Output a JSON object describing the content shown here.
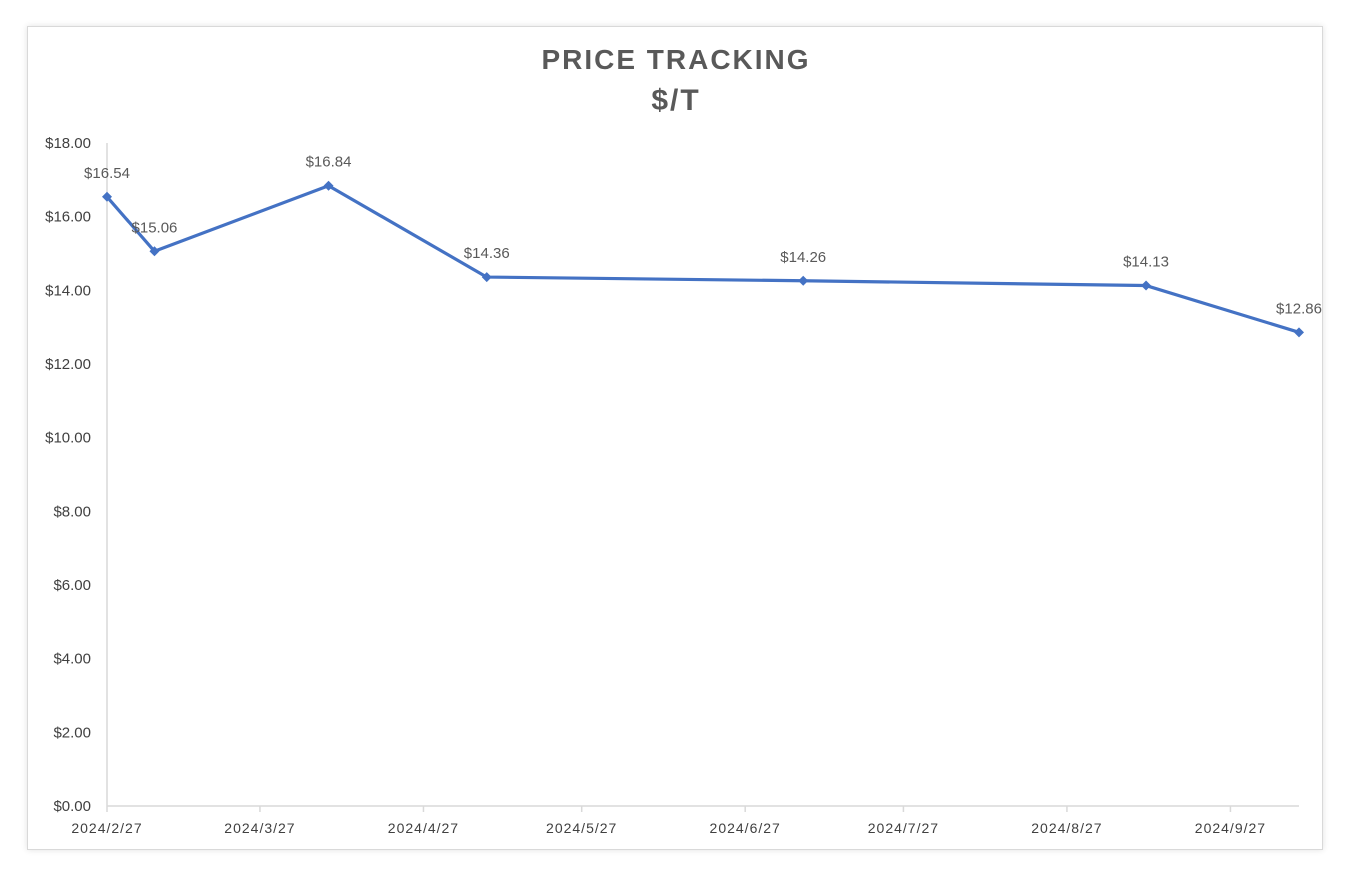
{
  "chart_data": {
    "type": "line",
    "title": "PRICE TRACKING",
    "subtitle": "$/T",
    "xlabel": "",
    "ylabel": "",
    "ylim": [
      0,
      18
    ],
    "y_ticks": [
      "$0.00",
      "$2.00",
      "$4.00",
      "$6.00",
      "$8.00",
      "$10.00",
      "$12.00",
      "$14.00",
      "$16.00",
      "$18.00"
    ],
    "x_ticks": [
      "2024/2/27",
      "2024/3/27",
      "2024/4/27",
      "2024/5/27",
      "2024/6/27",
      "2024/7/27",
      "2024/8/27",
      "2024/9/27"
    ],
    "grid": false,
    "legend": "none",
    "color": "#4472c4",
    "marker": "diamond",
    "series": [
      {
        "x": [
          "2024/2/27",
          "2024/3/7",
          "2024/4/9",
          "2024/5/9",
          "2024/7/8",
          "2024/9/11",
          "2024/10/10"
        ],
        "values": [
          16.54,
          15.06,
          16.84,
          14.36,
          14.26,
          14.13,
          12.86
        ],
        "labels": [
          "$16.54",
          "$15.06",
          "$16.84",
          "$14.36",
          "$14.26",
          "$14.13",
          "$12.86"
        ]
      }
    ]
  }
}
